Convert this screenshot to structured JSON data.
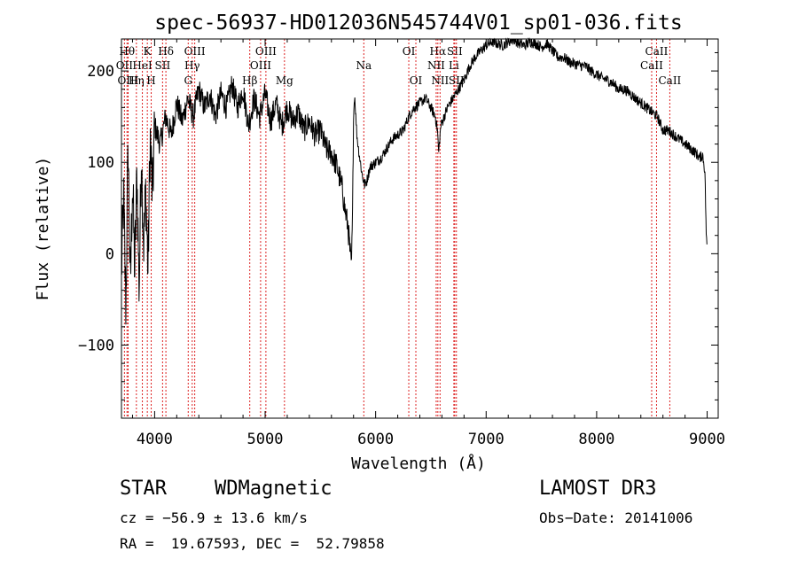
{
  "chart_data": {
    "type": "line",
    "title": "spec-56937-HD012036N545744V01_sp01-036.fits",
    "xlabel": "Wavelength (Å)",
    "ylabel": "Flux (relative)",
    "xlim": [
      3700,
      9100
    ],
    "ylim": [
      -180,
      235
    ],
    "x_ticks": [
      4000,
      5000,
      6000,
      7000,
      8000,
      9000
    ],
    "y_ticks": [
      -100,
      0,
      100,
      200
    ],
    "x_tick_labels": [
      "4000",
      "5000",
      "6000",
      "7000",
      "8000",
      "9000"
    ],
    "y_tick_labels": [
      "−100",
      "0",
      "100",
      "200"
    ],
    "series": [
      {
        "name": "spectrum",
        "color": "#000000",
        "x": [
          3700,
          3720,
          3740,
          3760,
          3780,
          3800,
          3820,
          3840,
          3860,
          3880,
          3900,
          3920,
          3940,
          3960,
          3980,
          4000,
          4050,
          4100,
          4150,
          4200,
          4250,
          4300,
          4350,
          4400,
          4450,
          4500,
          4550,
          4600,
          4650,
          4700,
          4750,
          4800,
          4850,
          4900,
          4950,
          5000,
          5050,
          5100,
          5150,
          5200,
          5250,
          5300,
          5350,
          5400,
          5450,
          5500,
          5550,
          5600,
          5650,
          5700,
          5720,
          5750,
          5770,
          5780,
          5790,
          5800,
          5810,
          5830,
          5850,
          5880,
          5900,
          5920,
          5950,
          6000,
          6050,
          6100,
          6150,
          6200,
          6250,
          6300,
          6350,
          6400,
          6450,
          6500,
          6540,
          6560,
          6570,
          6590,
          6620,
          6650,
          6700,
          6750,
          6800,
          6850,
          6900,
          6950,
          7000,
          7050,
          7100,
          7150,
          7200,
          7250,
          7300,
          7350,
          7400,
          7450,
          7500,
          7550,
          7600,
          7650,
          7700,
          7750,
          7800,
          7850,
          7900,
          7950,
          8000,
          8050,
          8100,
          8150,
          8200,
          8250,
          8300,
          8350,
          8400,
          8450,
          8500,
          8550,
          8600,
          8650,
          8700,
          8750,
          8800,
          8850,
          8900,
          8930,
          8960,
          8980,
          8990,
          9000
        ],
        "y": [
          -20,
          60,
          -60,
          120,
          -40,
          80,
          -20,
          90,
          -40,
          110,
          10,
          70,
          -20,
          130,
          60,
          140,
          120,
          150,
          130,
          165,
          145,
          170,
          150,
          180,
          160,
          175,
          150,
          175,
          160,
          185,
          160,
          180,
          140,
          170,
          150,
          175,
          145,
          165,
          140,
          160,
          145,
          155,
          135,
          145,
          130,
          135,
          115,
          110,
          95,
          70,
          50,
          30,
          0,
          -15,
          30,
          150,
          175,
          130,
          110,
          85,
          75,
          80,
          95,
          100,
          105,
          115,
          125,
          130,
          135,
          150,
          160,
          165,
          170,
          160,
          150,
          135,
          110,
          140,
          150,
          160,
          170,
          180,
          190,
          205,
          215,
          222,
          228,
          232,
          230,
          228,
          232,
          235,
          230,
          228,
          232,
          230,
          226,
          230,
          222,
          215,
          215,
          210,
          208,
          206,
          205,
          200,
          196,
          192,
          190,
          186,
          180,
          180,
          176,
          170,
          165,
          160,
          155,
          150,
          135,
          135,
          130,
          125,
          120,
          115,
          110,
          105,
          108,
          90,
          30,
          0
        ]
      }
    ],
    "emission_lines": [
      {
        "label": "Hθ",
        "wavelength": 3750,
        "row": 1
      },
      {
        "label": "OII",
        "wavelength": 3727,
        "row": 2
      },
      {
        "label": "OIII",
        "wavelength": 3760,
        "row": 3
      },
      {
        "label": "K",
        "wavelength": 3934,
        "row": 1
      },
      {
        "label": "HeI",
        "wavelength": 3889,
        "row": 2
      },
      {
        "label": "Hη",
        "wavelength": 3835,
        "row": 3
      },
      {
        "label": "Hδ",
        "wavelength": 4102,
        "row": 1
      },
      {
        "label": "SII",
        "wavelength": 4072,
        "row": 2
      },
      {
        "label": "H",
        "wavelength": 3969,
        "row": 3
      },
      {
        "label": "OIII",
        "wavelength": 4363,
        "row": 1
      },
      {
        "label": "Hγ",
        "wavelength": 4340,
        "row": 2
      },
      {
        "label": "G",
        "wavelength": 4304,
        "row": 3
      },
      {
        "label": "Hβ",
        "wavelength": 4861,
        "row": 3
      },
      {
        "label": "OIII",
        "wavelength": 5007,
        "row": 1
      },
      {
        "label": "OIII",
        "wavelength": 4959,
        "row": 2
      },
      {
        "label": "Mg",
        "wavelength": 5175,
        "row": 3
      },
      {
        "label": "Na",
        "wavelength": 5893,
        "row": 2
      },
      {
        "label": "OI",
        "wavelength": 6300,
        "row": 1
      },
      {
        "label": "OI",
        "wavelength": 6364,
        "row": 3
      },
      {
        "label": "Hα",
        "wavelength": 6563,
        "row": 1
      },
      {
        "label": "SII",
        "wavelength": 6716,
        "row": 1
      },
      {
        "label": "NII",
        "wavelength": 6548,
        "row": 2
      },
      {
        "label": "Li",
        "wavelength": 6708,
        "row": 2
      },
      {
        "label": "NII",
        "wavelength": 6583,
        "row": 3
      },
      {
        "label": "SII",
        "wavelength": 6731,
        "row": 3
      },
      {
        "label": "CaII",
        "wavelength": 8542,
        "row": 1
      },
      {
        "label": "CaII",
        "wavelength": 8498,
        "row": 2
      },
      {
        "label": "CaII",
        "wavelength": 8662,
        "row": 3
      }
    ]
  },
  "info": {
    "class_label": "STAR",
    "subclass": "WDMagnetic",
    "survey": "LAMOST DR3",
    "cz": "cz = −56.9 ± 13.6 km/s",
    "obs_date": "Obs−Date: 20141006",
    "coords": "RA =  19.67593, DEC =  52.79858"
  }
}
